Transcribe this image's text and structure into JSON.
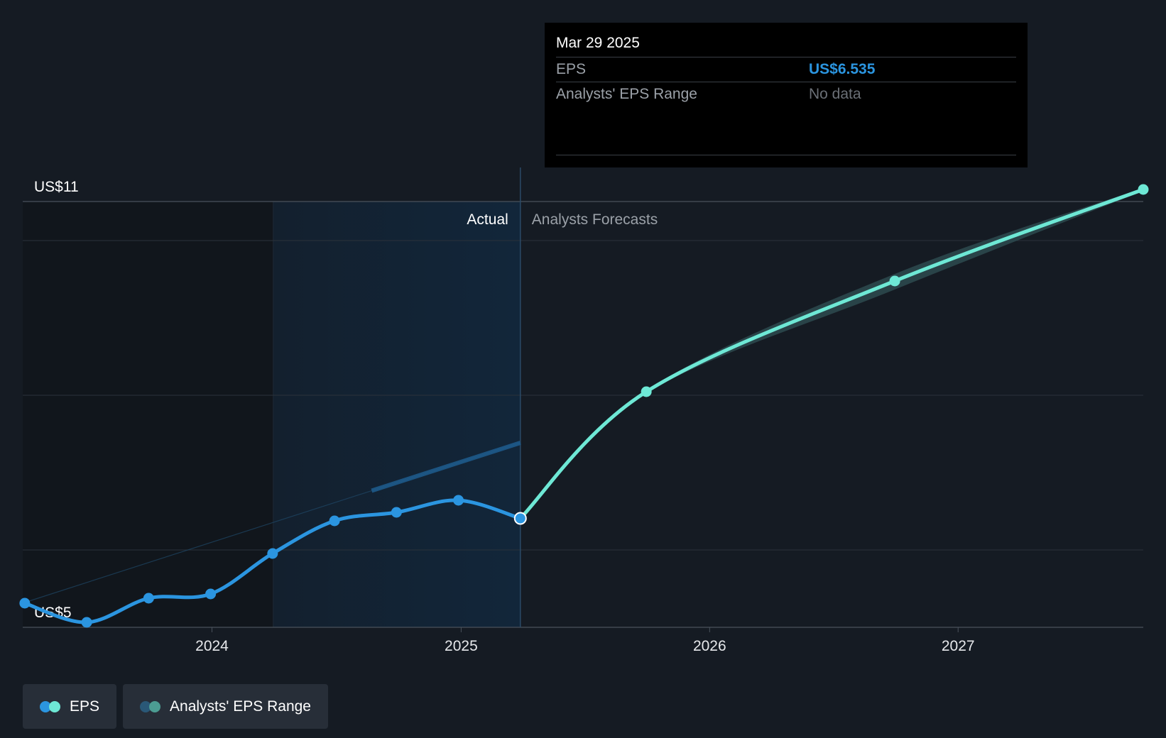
{
  "tooltip": {
    "date": "Mar 29 2025",
    "eps_label": "EPS",
    "eps_value": "US$6.535",
    "range_label": "Analysts' EPS Range",
    "range_value": "No data"
  },
  "legend": {
    "eps_label": "EPS",
    "range_label": "Analysts' EPS Range"
  },
  "colors": {
    "background": "#151b23",
    "actual_line": "#2b95e0",
    "forecast_line": "#6ee8d5",
    "highlight_band": "#12263a",
    "range_band": "#2d4a4f",
    "range_dot": "#2a5877",
    "range_dot_2": "#4c9c92"
  },
  "chart_data": {
    "type": "line",
    "y_ticks": [
      {
        "value": 11,
        "label": "US$11"
      },
      {
        "value": 5,
        "label": "US$5"
      }
    ],
    "ylim": [
      5,
      11
    ],
    "xlim": [
      "2023-03-29",
      "2027-09-30"
    ],
    "x_ticks": [
      {
        "date": "2024-01-01",
        "label": "2024"
      },
      {
        "date": "2025-01-01",
        "label": "2025"
      },
      {
        "date": "2026-01-01",
        "label": "2026"
      },
      {
        "date": "2027-01-01",
        "label": "2027"
      }
    ],
    "gridlines": [
      10.45,
      8.27,
      6.09
    ],
    "highlight_range": [
      "2024-03-31",
      "2025-03-29"
    ],
    "divider_date": "2025-03-29",
    "annotations": {
      "actual": "Actual",
      "forecast": "Analysts Forecasts"
    },
    "series": [
      {
        "name": "EPS",
        "points": [
          {
            "x": "2023-04-01",
            "y": 5.34
          },
          {
            "x": "2023-07-01",
            "y": 5.07
          },
          {
            "x": "2023-09-30",
            "y": 5.41
          },
          {
            "x": "2023-12-30",
            "y": 5.47
          },
          {
            "x": "2024-03-30",
            "y": 6.04
          },
          {
            "x": "2024-06-29",
            "y": 6.5
          },
          {
            "x": "2024-09-28",
            "y": 6.62
          },
          {
            "x": "2024-12-28",
            "y": 6.79
          },
          {
            "x": "2025-03-29",
            "y": 6.535
          }
        ]
      },
      {
        "name": "Analysts Forecasts",
        "points": [
          {
            "x": "2025-03-29",
            "y": 6.535
          },
          {
            "x": "2025-09-30",
            "y": 8.32
          },
          {
            "x": "2026-09-30",
            "y": 9.88
          },
          {
            "x": "2027-09-30",
            "y": 11.17
          }
        ],
        "range_low": [
          6.535,
          8.3,
          9.76,
          11.15
        ],
        "range_high": [
          6.535,
          8.34,
          9.98,
          11.19
        ]
      }
    ],
    "trend_line": [
      {
        "x": "2023-04-01",
        "y": 5.35
      },
      {
        "x": "2025-03-29",
        "y": 7.6
      }
    ]
  }
}
